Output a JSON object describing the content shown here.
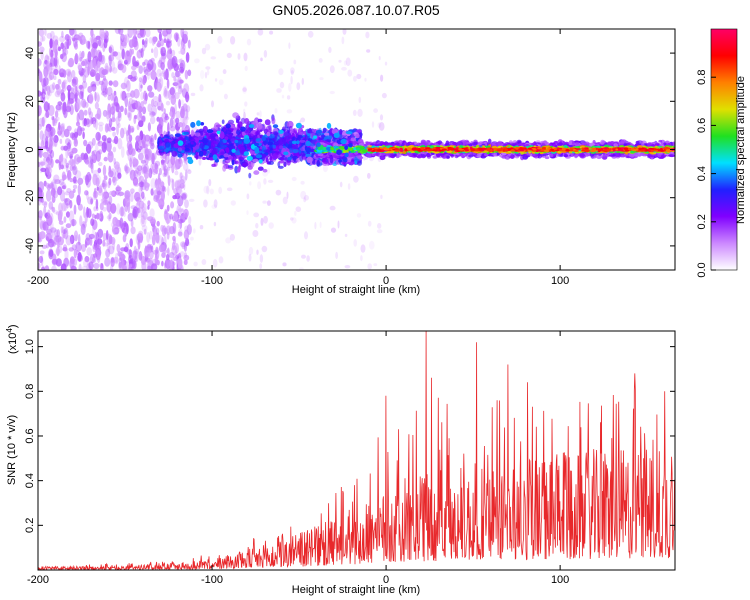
{
  "title": "GN05.2026.087.10.07.R05",
  "chart_data": [
    {
      "type": "heatmap",
      "name": "spectrogram",
      "xlabel": "Height of straight line (km)",
      "ylabel": "Frequency (Hz)",
      "xlim": [
        -200,
        166
      ],
      "ylim": [
        -50,
        50
      ],
      "xticks": [
        "-200",
        "-100",
        "0",
        "100"
      ],
      "xtick_values": [
        -200,
        -100,
        0,
        100
      ],
      "yticks": [
        "40",
        "20",
        "0",
        "-20",
        "-40"
      ],
      "ytick_values": [
        40,
        20,
        0,
        -20,
        -40
      ],
      "description_regions": [
        {
          "x_range": [
            -200,
            -113
          ],
          "freq_range": [
            -50,
            50
          ],
          "amplitude": "low scattered noise"
        },
        {
          "x_range": [
            -130,
            -40
          ],
          "freq_range": [
            -12,
            16
          ],
          "amplitude": "0.1-0.4"
        },
        {
          "x_range": [
            -40,
            166
          ],
          "freq_range": [
            -3,
            3
          ],
          "amplitude": "0.4-1.0"
        }
      ],
      "colorbar": {
        "label": "Normalized spectral amplitude",
        "range": [
          0,
          1
        ],
        "ticks": [
          "0.0",
          "0.2",
          "0.4",
          "0.6",
          "0.8"
        ],
        "tick_values": [
          0.0,
          0.2,
          0.4,
          0.6,
          0.8
        ],
        "colors": [
          "#ffffff",
          "#cc88ff",
          "#8000ff",
          "#2020ff",
          "#00e0ff",
          "#20e020",
          "#e0e000",
          "#ff8000",
          "#ff0000",
          "#ff0066"
        ]
      }
    },
    {
      "type": "line",
      "name": "snr",
      "xlabel": "Height of straight line (km)",
      "ylabel": "SNR (10 * v/v)",
      "multiplier": "(x10",
      "multiplier_exp": "4",
      "multiplier_close": ")",
      "xlim": [
        -200,
        166
      ],
      "ylim": [
        0,
        1.07
      ],
      "xticks": [
        "-200",
        "-100",
        "0",
        "100"
      ],
      "xtick_values": [
        -200,
        -100,
        0,
        100
      ],
      "yticks": [
        "0.2",
        "0.4",
        "0.6",
        "0.8",
        "1.0"
      ],
      "ytick_values": [
        0.2,
        0.4,
        0.6,
        0.8,
        1.0
      ],
      "color": "#e8282b",
      "envelope": {
        "x": [
          -200,
          -180,
          -160,
          -140,
          -120,
          -100,
          -85,
          -70,
          -60,
          -50,
          -40,
          -30,
          -20,
          -10,
          0,
          10,
          20,
          30,
          40,
          50,
          60,
          70,
          80,
          90,
          100,
          110,
          120,
          130,
          140,
          150,
          160,
          166
        ],
        "mean": [
          0.01,
          0.01,
          0.01,
          0.015,
          0.02,
          0.03,
          0.05,
          0.07,
          0.08,
          0.1,
          0.12,
          0.14,
          0.16,
          0.19,
          0.22,
          0.25,
          0.26,
          0.27,
          0.28,
          0.29,
          0.3,
          0.3,
          0.31,
          0.31,
          0.32,
          0.32,
          0.33,
          0.33,
          0.34,
          0.34,
          0.35,
          0.35
        ],
        "max": [
          0.02,
          0.02,
          0.03,
          0.04,
          0.05,
          0.08,
          0.12,
          0.16,
          0.2,
          0.27,
          0.3,
          0.35,
          0.43,
          0.55,
          0.78,
          0.8,
          1.07,
          0.92,
          0.85,
          1.02,
          0.95,
          0.92,
          0.9,
          0.88,
          0.86,
          0.82,
          0.8,
          0.78,
          0.88,
          0.82,
          0.8,
          0.72
        ]
      },
      "peaks": [
        {
          "x": 0,
          "y": 0.78
        },
        {
          "x": 23,
          "y": 1.07
        },
        {
          "x": 52,
          "y": 1.02
        },
        {
          "x": 70,
          "y": 0.92
        },
        {
          "x": 143,
          "y": 0.88
        },
        {
          "x": 160,
          "y": 0.8
        }
      ]
    }
  ]
}
